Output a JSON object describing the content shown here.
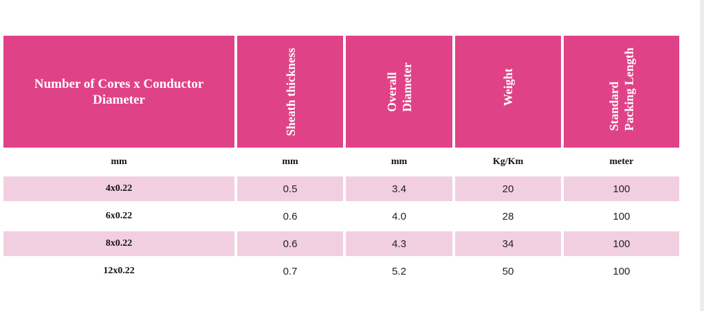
{
  "colors": {
    "header_bg": "#e04287",
    "header_text": "#ffffff",
    "row_shade": "#f2cfe0",
    "row_plain": "#ffffff"
  },
  "header": {
    "cores": "Number of Cores x Conductor Diameter",
    "sheath": "Sheath thickness",
    "overall_line1": "Overall",
    "overall_line2": "Diameter",
    "weight": "Weight",
    "packing_line1": "Standard",
    "packing_line2": "Packing Length"
  },
  "units": [
    "mm",
    "mm",
    "mm",
    "Kg/Km",
    "meter"
  ],
  "rows": [
    {
      "cores": "4x0.22",
      "sheath": "0.5",
      "overall": "3.4",
      "weight": "20",
      "packing": "100"
    },
    {
      "cores": "6x0.22",
      "sheath": "0.6",
      "overall": "4.0",
      "weight": "28",
      "packing": "100"
    },
    {
      "cores": "8x0.22",
      "sheath": "0.6",
      "overall": "4.3",
      "weight": "34",
      "packing": "100"
    },
    {
      "cores": "12x0.22",
      "sheath": "0.7",
      "overall": "5.2",
      "weight": "50",
      "packing": "100"
    }
  ]
}
